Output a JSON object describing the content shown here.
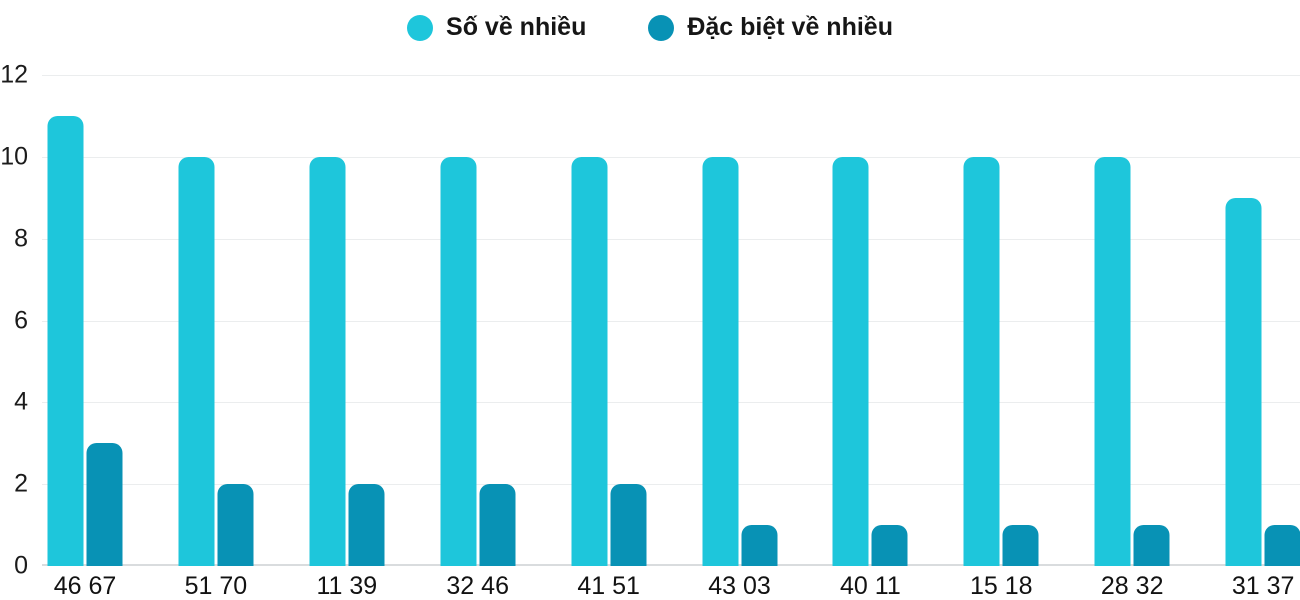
{
  "chart_data": {
    "type": "bar",
    "title": "",
    "xlabel": "",
    "ylabel": "",
    "categories": [
      "46 67",
      "51 70",
      "11 39",
      "32 46",
      "41 51",
      "43 03",
      "40 11",
      "15 18",
      "28 32",
      "31 37"
    ],
    "series": [
      {
        "name": "Số về nhiều",
        "color": "#1ec6db",
        "values": [
          11,
          10,
          10,
          10,
          10,
          10,
          10,
          10,
          10,
          9
        ]
      },
      {
        "name": "Đặc biệt về nhiều",
        "color": "#0892b5",
        "values": [
          3,
          2,
          2,
          2,
          2,
          1,
          1,
          1,
          1,
          1
        ]
      }
    ],
    "ylim": [
      0,
      12
    ],
    "yticks": [
      0,
      2,
      4,
      6,
      8,
      10,
      12
    ],
    "grid": true,
    "legend_position": "top",
    "colors": {
      "grid": "#ebedee",
      "baseline": "#d9dcde",
      "tick_text": "#1b1b1b",
      "legend_text": "#161616"
    }
  }
}
